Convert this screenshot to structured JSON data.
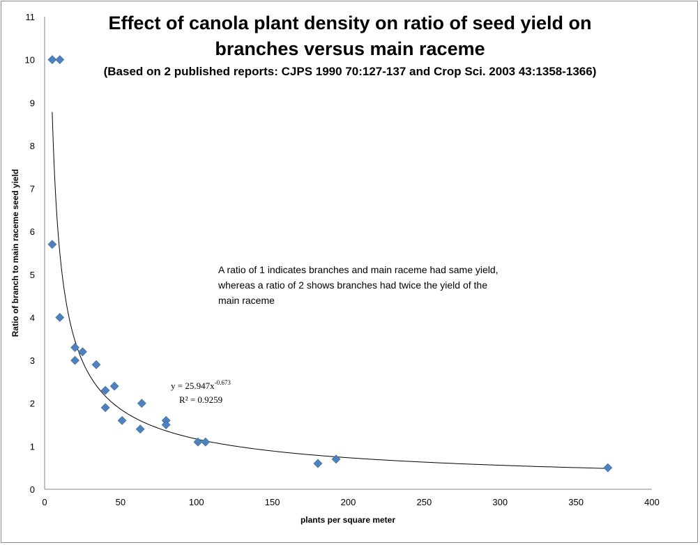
{
  "chart_data": {
    "type": "scatter",
    "title_line1": "Effect of canola plant density on ratio of seed yield on",
    "title_line2": "branches versus main raceme",
    "subtitle": "(Based on 2 published reports: CJPS 1990 70:127-137 and Crop Sci. 2003 43:1358-1366)",
    "xlabel": "plants per square meter",
    "ylabel": "Ratio of branch to main raceme seed yield",
    "xlim": [
      0,
      400
    ],
    "ylim": [
      0,
      11
    ],
    "x_ticks": [
      "0",
      "50",
      "100",
      "150",
      "200",
      "250",
      "300",
      "350",
      "400"
    ],
    "y_ticks": [
      "0",
      "1",
      "2",
      "3",
      "4",
      "5",
      "6",
      "7",
      "8",
      "9",
      "10",
      "11"
    ],
    "grid": false,
    "legend": "none",
    "series": [
      {
        "color": "#4f81bd",
        "points": [
          {
            "x": 5,
            "y": 10
          },
          {
            "x": 10,
            "y": 10
          },
          {
            "x": 5,
            "y": 5.7
          },
          {
            "x": 10,
            "y": 4
          },
          {
            "x": 20,
            "y": 3.3
          },
          {
            "x": 20,
            "y": 3.0
          },
          {
            "x": 25,
            "y": 3.2
          },
          {
            "x": 34,
            "y": 2.9
          },
          {
            "x": 40,
            "y": 2.3
          },
          {
            "x": 46,
            "y": 2.4
          },
          {
            "x": 40,
            "y": 1.9
          },
          {
            "x": 51,
            "y": 1.6
          },
          {
            "x": 64,
            "y": 2.0
          },
          {
            "x": 63,
            "y": 1.4
          },
          {
            "x": 80,
            "y": 1.6
          },
          {
            "x": 80,
            "y": 1.5
          },
          {
            "x": 101,
            "y": 1.1
          },
          {
            "x": 106,
            "y": 1.1
          },
          {
            "x": 180,
            "y": 0.6
          },
          {
            "x": 192,
            "y": 0.7
          },
          {
            "x": 371,
            "y": 0.5
          }
        ]
      }
    ],
    "trendline": {
      "type": "power",
      "a": 25.947,
      "b": -0.673,
      "x_range": [
        5,
        371
      ],
      "color": "#000000",
      "equation_text": "y = 25.947x",
      "equation_exp": "-0.673",
      "r2_text": "R² = 0.9259"
    },
    "annotation_lines": [
      "A ratio of 1 indicates branches and main raceme had same yield,",
      "whereas a ratio of 2 shows branches had twice the yield of the",
      "main raceme"
    ]
  }
}
